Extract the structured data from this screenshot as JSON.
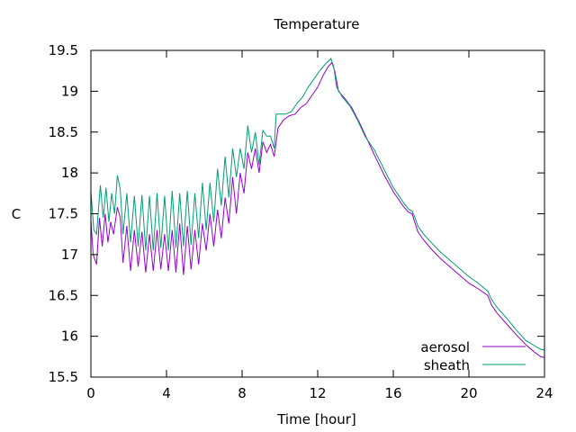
{
  "chart_data": {
    "type": "line",
    "title": "Temperature",
    "xlabel": "Time [hour]",
    "ylabel": "C",
    "xlim": [
      0,
      24
    ],
    "ylim": [
      15.5,
      19.5
    ],
    "x_ticks": [
      0,
      4,
      8,
      12,
      16,
      20,
      24
    ],
    "y_ticks": [
      15.5,
      16,
      16.5,
      17,
      17.5,
      18,
      18.5,
      19,
      19.5
    ],
    "grid": false,
    "legend_position": "bottom-right",
    "series": [
      {
        "name": "aerosol",
        "color": "#9400d3",
        "x": [
          0,
          0.12,
          0.3,
          0.45,
          0.6,
          0.75,
          0.9,
          1.05,
          1.2,
          1.4,
          1.55,
          1.7,
          1.9,
          2.1,
          2.3,
          2.5,
          2.7,
          2.9,
          3.1,
          3.3,
          3.5,
          3.7,
          3.9,
          4.1,
          4.3,
          4.5,
          4.7,
          4.9,
          5.1,
          5.3,
          5.5,
          5.7,
          5.9,
          6.1,
          6.3,
          6.5,
          6.7,
          6.9,
          7.1,
          7.3,
          7.5,
          7.7,
          7.9,
          8.1,
          8.3,
          8.5,
          8.7,
          8.9,
          9.1,
          9.3,
          9.5,
          9.7,
          9.9,
          10.2,
          10.5,
          10.8,
          11.1,
          11.4,
          11.7,
          12.0,
          12.3,
          12.55,
          12.75,
          12.9,
          13.1,
          13.4,
          13.8,
          14.2,
          14.6,
          15.0,
          15.5,
          16.0,
          16.5,
          16.8,
          17.0,
          17.1,
          17.3,
          17.6,
          18.0,
          18.5,
          19.0,
          19.5,
          20.0,
          20.5,
          21.0,
          21.2,
          21.5,
          22.0,
          22.5,
          23.0,
          23.5,
          23.8,
          24.0
        ],
        "values": [
          17.42,
          17.0,
          16.88,
          17.45,
          17.1,
          17.5,
          17.15,
          17.4,
          17.25,
          17.58,
          17.45,
          16.9,
          17.35,
          16.8,
          17.3,
          16.85,
          17.28,
          16.78,
          17.25,
          16.8,
          17.3,
          16.82,
          17.25,
          16.8,
          17.3,
          16.78,
          17.38,
          16.75,
          17.35,
          16.82,
          17.3,
          16.88,
          17.38,
          17.05,
          17.5,
          17.1,
          17.55,
          17.2,
          17.7,
          17.38,
          17.95,
          17.5,
          18.0,
          17.75,
          18.25,
          18.05,
          18.3,
          18.0,
          18.38,
          18.25,
          18.35,
          18.2,
          18.55,
          18.65,
          18.7,
          18.72,
          18.8,
          18.85,
          18.95,
          19.05,
          19.2,
          19.3,
          19.35,
          19.25,
          19.0,
          18.92,
          18.8,
          18.62,
          18.42,
          18.22,
          17.98,
          17.77,
          17.6,
          17.52,
          17.5,
          17.42,
          17.28,
          17.18,
          17.07,
          16.95,
          16.85,
          16.75,
          16.65,
          16.58,
          16.5,
          16.38,
          16.28,
          16.15,
          16.02,
          15.9,
          15.8,
          15.75,
          15.74
        ]
      },
      {
        "name": "sheath",
        "color": "#009e73",
        "x": [
          0,
          0.15,
          0.3,
          0.5,
          0.65,
          0.8,
          0.95,
          1.1,
          1.25,
          1.4,
          1.55,
          1.7,
          1.9,
          2.1,
          2.3,
          2.5,
          2.7,
          2.9,
          3.1,
          3.3,
          3.5,
          3.7,
          3.9,
          4.1,
          4.3,
          4.5,
          4.7,
          4.9,
          5.1,
          5.3,
          5.5,
          5.7,
          5.9,
          6.1,
          6.3,
          6.5,
          6.7,
          6.9,
          7.1,
          7.3,
          7.5,
          7.7,
          7.9,
          8.1,
          8.3,
          8.5,
          8.7,
          8.9,
          9.1,
          9.3,
          9.5,
          9.7,
          9.8,
          10.0,
          10.3,
          10.6,
          10.9,
          11.2,
          11.5,
          11.8,
          12.1,
          12.4,
          12.7,
          12.85,
          13.0,
          13.3,
          13.7,
          14.1,
          14.5,
          15.0,
          15.5,
          16.0,
          16.5,
          16.8,
          17.0,
          17.1,
          17.3,
          17.6,
          18.0,
          18.5,
          19.0,
          19.5,
          20.0,
          20.5,
          21.0,
          21.2,
          21.5,
          22.0,
          22.5,
          23.0,
          23.5,
          23.8,
          24.0
        ],
        "values": [
          17.78,
          17.3,
          17.25,
          17.85,
          17.45,
          17.82,
          17.4,
          17.75,
          17.5,
          17.97,
          17.8,
          17.25,
          17.75,
          17.15,
          17.72,
          17.1,
          17.73,
          17.05,
          17.72,
          17.05,
          17.75,
          17.08,
          17.72,
          17.05,
          17.78,
          17.08,
          17.75,
          17.1,
          17.78,
          17.12,
          17.75,
          17.2,
          17.88,
          17.3,
          17.88,
          17.4,
          18.05,
          17.6,
          18.2,
          17.7,
          18.3,
          17.95,
          18.3,
          18.05,
          18.58,
          18.25,
          18.5,
          18.1,
          18.52,
          18.45,
          18.45,
          18.3,
          18.72,
          18.72,
          18.72,
          18.75,
          18.85,
          18.93,
          19.05,
          19.15,
          19.25,
          19.33,
          19.4,
          19.3,
          19.05,
          18.93,
          18.82,
          18.65,
          18.45,
          18.28,
          18.05,
          17.82,
          17.65,
          17.56,
          17.53,
          17.48,
          17.35,
          17.25,
          17.15,
          17.03,
          16.93,
          16.83,
          16.73,
          16.65,
          16.55,
          16.45,
          16.35,
          16.22,
          16.08,
          15.95,
          15.88,
          15.84,
          15.83
        ]
      }
    ]
  }
}
